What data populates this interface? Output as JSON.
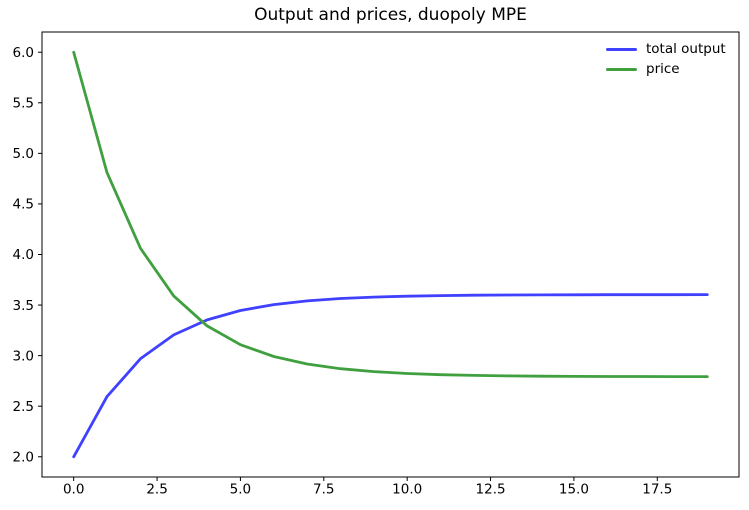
{
  "title": "Output and prices, duopoly MPE",
  "colors": {
    "background": "#ffffff",
    "axis": "#000000",
    "text": "#000000",
    "total_output_line": "#4040ff",
    "price_line": "#40a040"
  },
  "legend": {
    "position": "upper right",
    "frame": false,
    "entries": [
      "total output",
      "price"
    ]
  },
  "chart_data": {
    "type": "line",
    "title": "Output and prices, duopoly MPE",
    "xlabel": "",
    "ylabel": "",
    "grid": false,
    "legend_position": "upper right",
    "xlim": [
      -0.95,
      19.95
    ],
    "ylim": [
      1.8,
      6.2
    ],
    "xticks": [
      0.0,
      2.5,
      5.0,
      7.5,
      10.0,
      12.5,
      15.0,
      17.5
    ],
    "yticks": [
      2.0,
      2.5,
      3.0,
      3.5,
      4.0,
      4.5,
      5.0,
      5.5,
      6.0
    ],
    "x": [
      0,
      1,
      2,
      3,
      4,
      5,
      6,
      7,
      8,
      9,
      10,
      11,
      12,
      13,
      14,
      15,
      16,
      17,
      18,
      19
    ],
    "series": [
      {
        "name": "total output",
        "color": "#4040ff",
        "values": [
          2.0,
          2.595,
          2.969,
          3.205,
          3.353,
          3.446,
          3.505,
          3.541,
          3.565,
          3.579,
          3.588,
          3.594,
          3.598,
          3.6,
          3.601,
          3.602,
          3.603,
          3.603,
          3.603,
          3.604
        ]
      },
      {
        "name": "price",
        "color": "#40a040",
        "values": [
          6.0,
          4.81,
          4.062,
          3.591,
          3.294,
          3.108,
          2.991,
          2.917,
          2.871,
          2.842,
          2.823,
          2.812,
          2.805,
          2.8,
          2.797,
          2.795,
          2.794,
          2.794,
          2.793,
          2.793
        ]
      }
    ]
  }
}
